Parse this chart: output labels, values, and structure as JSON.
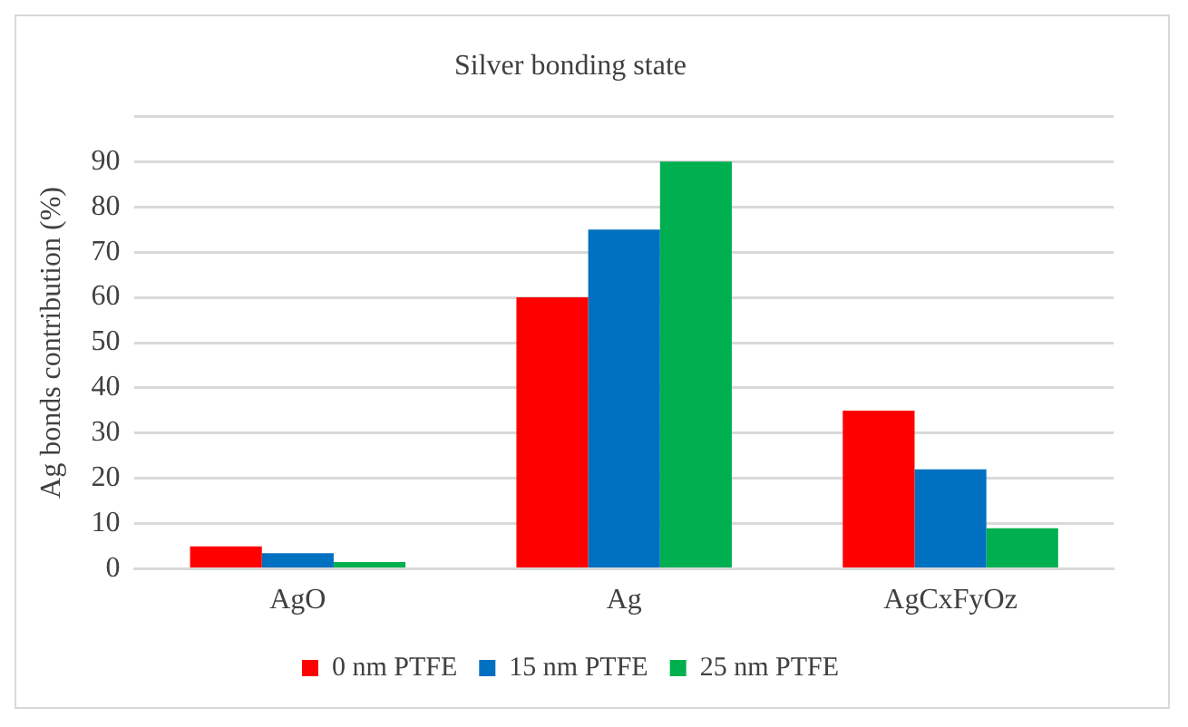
{
  "chart_data": {
    "type": "bar",
    "title": "Silver bonding state",
    "ylabel": "Ag bonds contribution (%)",
    "categories": [
      "AgO",
      "Ag",
      "AgCxFyOz"
    ],
    "series": [
      {
        "name": "0 nm PTFE",
        "color": "#ff0000",
        "values": [
          5,
          60,
          35
        ]
      },
      {
        "name": "15 nm PTFE",
        "color": "#0070c0",
        "values": [
          3.5,
          75,
          22
        ]
      },
      {
        "name": "25 nm PTFE",
        "color": "#00b050",
        "values": [
          1.5,
          90,
          9
        ]
      }
    ],
    "ylim": [
      0,
      100
    ],
    "yticks": [
      0,
      10,
      20,
      30,
      40,
      50,
      60,
      70,
      80,
      90,
      {
        "value": 100,
        "label": null
      }
    ],
    "grid": "y",
    "legend": "bottom"
  }
}
